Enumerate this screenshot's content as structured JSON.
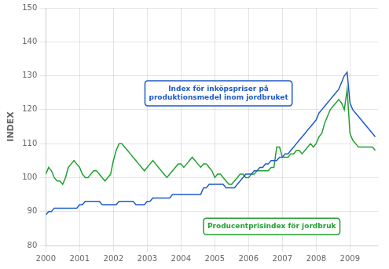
{
  "chart_data": {
    "type": "line",
    "ylabel": "INDEX",
    "xlim": [
      2000.0,
      2009.83
    ],
    "ylim": [
      80,
      150
    ],
    "xticks": [
      2000,
      2001,
      2002,
      2003,
      2004,
      2005,
      2006,
      2007,
      2008,
      2009
    ],
    "yticks": [
      80,
      90,
      100,
      110,
      120,
      130,
      140,
      150
    ],
    "grid": true,
    "x": [
      2000.0,
      2000.083,
      2000.167,
      2000.25,
      2000.333,
      2000.417,
      2000.5,
      2000.583,
      2000.667,
      2000.75,
      2000.833,
      2000.917,
      2001.0,
      2001.083,
      2001.167,
      2001.25,
      2001.333,
      2001.417,
      2001.5,
      2001.583,
      2001.667,
      2001.75,
      2001.833,
      2001.917,
      2002.0,
      2002.083,
      2002.167,
      2002.25,
      2002.333,
      2002.417,
      2002.5,
      2002.583,
      2002.667,
      2002.75,
      2002.833,
      2002.917,
      2003.0,
      2003.083,
      2003.167,
      2003.25,
      2003.333,
      2003.417,
      2003.5,
      2003.583,
      2003.667,
      2003.75,
      2003.833,
      2003.917,
      2004.0,
      2004.083,
      2004.167,
      2004.25,
      2004.333,
      2004.417,
      2004.5,
      2004.583,
      2004.667,
      2004.75,
      2004.833,
      2004.917,
      2005.0,
      2005.083,
      2005.167,
      2005.25,
      2005.333,
      2005.417,
      2005.5,
      2005.583,
      2005.667,
      2005.75,
      2005.833,
      2005.917,
      2006.0,
      2006.083,
      2006.167,
      2006.25,
      2006.333,
      2006.417,
      2006.5,
      2006.583,
      2006.667,
      2006.75,
      2006.833,
      2006.917,
      2007.0,
      2007.083,
      2007.167,
      2007.25,
      2007.333,
      2007.417,
      2007.5,
      2007.583,
      2007.667,
      2007.75,
      2007.833,
      2007.917,
      2008.0,
      2008.083,
      2008.167,
      2008.25,
      2008.333,
      2008.417,
      2008.5,
      2008.583,
      2008.667,
      2008.75,
      2008.833,
      2008.917,
      2009.0,
      2009.083,
      2009.167,
      2009.25,
      2009.333,
      2009.417,
      2009.5,
      2009.583,
      2009.667,
      2009.75
    ],
    "series": [
      {
        "color": "#1F5AC8",
        "values": [
          89,
          90,
          90,
          91,
          91,
          91,
          91,
          91,
          91,
          91,
          91,
          91,
          92,
          92,
          93,
          93,
          93,
          93,
          93,
          93,
          92,
          92,
          92,
          92,
          92,
          92,
          93,
          93,
          93,
          93,
          93,
          93,
          92,
          92,
          92,
          92,
          93,
          93,
          94,
          94,
          94,
          94,
          94,
          94,
          94,
          95,
          95,
          95,
          95,
          95,
          95,
          95,
          95,
          95,
          95,
          95,
          97,
          97,
          98,
          98,
          98,
          98,
          98,
          98,
          97,
          97,
          97,
          97,
          98,
          99,
          100,
          101,
          101,
          101,
          102,
          102,
          103,
          103,
          104,
          104,
          105,
          105,
          105,
          106,
          106,
          107,
          107,
          108,
          109,
          110,
          111,
          112,
          113,
          114,
          115,
          116,
          117,
          119,
          120,
          121,
          122,
          123,
          124,
          125,
          126,
          128,
          130,
          131,
          122,
          120,
          119,
          118,
          117,
          116,
          115,
          114,
          113,
          112
        ]
      },
      {
        "color": "#22A030",
        "values": [
          101,
          103,
          102,
          100,
          99,
          99,
          98,
          100,
          103,
          104,
          105,
          104,
          103,
          101,
          100,
          100,
          101,
          102,
          102,
          101,
          100,
          99,
          100,
          101,
          105,
          108,
          110,
          110,
          109,
          108,
          107,
          106,
          105,
          104,
          103,
          102,
          103,
          104,
          105,
          104,
          103,
          102,
          101,
          100,
          101,
          102,
          103,
          104,
          104,
          103,
          104,
          105,
          106,
          105,
          104,
          103,
          104,
          104,
          103,
          102,
          100,
          101,
          101,
          100,
          99,
          98,
          98,
          99,
          100,
          101,
          101,
          100,
          100,
          101,
          101,
          102,
          102,
          102,
          102,
          102,
          103,
          103,
          109,
          109,
          106,
          106,
          106,
          107,
          107,
          108,
          108,
          107,
          108,
          109,
          110,
          109,
          110,
          112,
          113,
          116,
          118,
          120,
          121,
          122,
          123,
          122,
          120,
          126,
          113,
          111,
          110,
          109,
          109,
          109,
          109,
          109,
          109,
          108
        ]
      }
    ],
    "annotations": [
      {
        "text": "Index för inköpspriser på\nproduktionsmedel inom jordbruket",
        "color": "#1F5AC8"
      },
      {
        "text": "Producentprisindex för jordbruk",
        "color": "#22A030"
      }
    ]
  }
}
